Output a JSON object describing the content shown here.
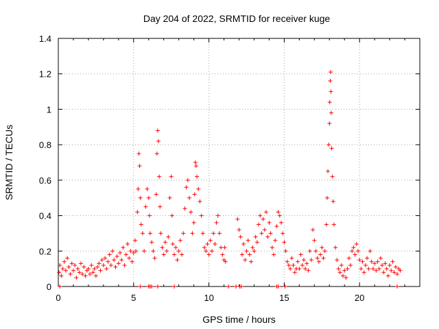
{
  "chart_data": {
    "type": "scatter",
    "title": "Day 204 of 2022, SRMTID for receiver kuge",
    "xlabel": "GPS time / hours",
    "ylabel": "SRMTID / TECUs",
    "xlim": [
      0,
      24
    ],
    "ylim": [
      0,
      1.4
    ],
    "xticks": [
      0,
      5,
      10,
      15,
      20
    ],
    "xtick_labels": [
      "0",
      "5",
      "10",
      "15",
      "20"
    ],
    "yticks": [
      0,
      0.2,
      0.4,
      0.6,
      0.8,
      1.0,
      1.2,
      1.4
    ],
    "ytick_labels": [
      "0",
      "0.2",
      "0.4",
      "0.6",
      "0.8",
      "1",
      "1.2",
      "1.4"
    ],
    "grid": true,
    "marker": "+",
    "series": [
      {
        "name": "SRMTID",
        "color": "#ff0000",
        "points": [
          [
            0.05,
            0.08
          ],
          [
            0.1,
            0.12
          ],
          [
            0.2,
            0.06
          ],
          [
            0.3,
            0.1
          ],
          [
            0.4,
            0.14
          ],
          [
            0.5,
            0.09
          ],
          [
            0.6,
            0.16
          ],
          [
            0.7,
            0.11
          ],
          [
            0.8,
            0.07
          ],
          [
            0.9,
            0.13
          ],
          [
            1.0,
            0.09
          ],
          [
            1.1,
            0.12
          ],
          [
            1.2,
            0.05
          ],
          [
            1.3,
            0.1
          ],
          [
            1.4,
            0.08
          ],
          [
            1.5,
            0.13
          ],
          [
            1.6,
            0.07
          ],
          [
            1.7,
            0.11
          ],
          [
            1.8,
            0.06
          ],
          [
            1.9,
            0.09
          ],
          [
            2.0,
            0.1
          ],
          [
            2.1,
            0.07
          ],
          [
            2.2,
            0.12
          ],
          [
            2.3,
            0.08
          ],
          [
            2.4,
            0.1
          ],
          [
            2.5,
            0.06
          ],
          [
            2.6,
            0.11
          ],
          [
            2.7,
            0.13
          ],
          [
            2.8,
            0.09
          ],
          [
            2.9,
            0.15
          ],
          [
            3.0,
            0.12
          ],
          [
            3.1,
            0.16
          ],
          [
            3.2,
            0.1
          ],
          [
            3.3,
            0.14
          ],
          [
            3.4,
            0.18
          ],
          [
            3.5,
            0.12
          ],
          [
            3.6,
            0.2
          ],
          [
            3.7,
            0.15
          ],
          [
            3.8,
            0.11
          ],
          [
            3.9,
            0.17
          ],
          [
            4.0,
            0.13
          ],
          [
            4.1,
            0.19
          ],
          [
            4.2,
            0.15
          ],
          [
            4.3,
            0.22
          ],
          [
            4.4,
            0.12
          ],
          [
            4.5,
            0.18
          ],
          [
            4.6,
            0.24
          ],
          [
            4.7,
            0.16
          ],
          [
            4.8,
            0.2
          ],
          [
            4.9,
            0.14
          ],
          [
            5.0,
            0.19
          ],
          [
            5.1,
            0.26
          ],
          [
            5.15,
            0.2
          ],
          [
            5.25,
            0.42
          ],
          [
            5.3,
            0.55
          ],
          [
            5.35,
            0.75
          ],
          [
            5.4,
            0.68
          ],
          [
            5.45,
            0.5
          ],
          [
            5.5,
            0.35
          ],
          [
            5.6,
            0.3
          ],
          [
            5.7,
            0.2
          ],
          [
            5.8,
            0.45
          ],
          [
            5.9,
            0.55
          ],
          [
            6.0,
            0.5
          ],
          [
            6.05,
            0.4
          ],
          [
            6.1,
            0.3
          ],
          [
            6.2,
            0.25
          ],
          [
            6.3,
            0.2
          ],
          [
            6.4,
            0.16
          ],
          [
            6.5,
            0.52
          ],
          [
            6.55,
            0.75
          ],
          [
            6.6,
            0.88
          ],
          [
            6.65,
            0.82
          ],
          [
            6.7,
            0.62
          ],
          [
            6.75,
            0.45
          ],
          [
            6.8,
            0.3
          ],
          [
            6.9,
            0.22
          ],
          [
            7.0,
            0.18
          ],
          [
            7.1,
            0.25
          ],
          [
            7.2,
            0.2
          ],
          [
            7.3,
            0.28
          ],
          [
            7.4,
            0.5
          ],
          [
            7.5,
            0.62
          ],
          [
            7.55,
            0.4
          ],
          [
            7.6,
            0.24
          ],
          [
            7.7,
            0.18
          ],
          [
            7.8,
            0.22
          ],
          [
            7.9,
            0.15
          ],
          [
            8.0,
            0.2
          ],
          [
            8.1,
            0.26
          ],
          [
            8.2,
            0.18
          ],
          [
            8.3,
            0.3
          ],
          [
            8.4,
            0.44
          ],
          [
            8.5,
            0.56
          ],
          [
            8.6,
            0.6
          ],
          [
            8.7,
            0.5
          ],
          [
            8.8,
            0.42
          ],
          [
            8.9,
            0.3
          ],
          [
            9.0,
            0.36
          ],
          [
            9.05,
            0.52
          ],
          [
            9.1,
            0.7
          ],
          [
            9.15,
            0.68
          ],
          [
            9.2,
            0.62
          ],
          [
            9.3,
            0.55
          ],
          [
            9.4,
            0.48
          ],
          [
            9.5,
            0.4
          ],
          [
            9.6,
            0.3
          ],
          [
            9.7,
            0.22
          ],
          [
            9.8,
            0.2
          ],
          [
            9.9,
            0.24
          ],
          [
            10.0,
            0.18
          ],
          [
            10.1,
            0.26
          ],
          [
            10.2,
            0.2
          ],
          [
            10.3,
            0.3
          ],
          [
            10.4,
            0.24
          ],
          [
            10.5,
            0.36
          ],
          [
            10.6,
            0.4
          ],
          [
            10.7,
            0.3
          ],
          [
            10.8,
            0.22
          ],
          [
            10.9,
            0.18
          ],
          [
            11.0,
            0.15
          ],
          [
            11.05,
            0.22
          ],
          [
            11.1,
            0.14
          ],
          [
            11.9,
            0.38
          ],
          [
            12.0,
            0.32
          ],
          [
            12.1,
            0.28
          ],
          [
            12.2,
            0.18
          ],
          [
            12.3,
            0.24
          ],
          [
            12.4,
            0.15
          ],
          [
            12.5,
            0.2
          ],
          [
            12.6,
            0.26
          ],
          [
            12.7,
            0.18
          ],
          [
            12.8,
            0.14
          ],
          [
            12.9,
            0.22
          ],
          [
            13.0,
            0.2
          ],
          [
            13.1,
            0.28
          ],
          [
            13.2,
            0.25
          ],
          [
            13.3,
            0.35
          ],
          [
            13.4,
            0.4
          ],
          [
            13.5,
            0.3
          ],
          [
            13.6,
            0.38
          ],
          [
            13.7,
            0.32
          ],
          [
            13.8,
            0.42
          ],
          [
            13.9,
            0.28
          ],
          [
            14.0,
            0.36
          ],
          [
            14.1,
            0.3
          ],
          [
            14.2,
            0.22
          ],
          [
            14.3,
            0.18
          ],
          [
            14.4,
            0.26
          ],
          [
            14.5,
            0.34
          ],
          [
            14.6,
            0.42
          ],
          [
            14.7,
            0.4
          ],
          [
            14.8,
            0.36
          ],
          [
            14.9,
            0.3
          ],
          [
            15.0,
            0.25
          ],
          [
            15.1,
            0.2
          ],
          [
            15.2,
            0.14
          ],
          [
            15.3,
            0.12
          ],
          [
            15.4,
            0.1
          ],
          [
            15.5,
            0.16
          ],
          [
            15.6,
            0.12
          ],
          [
            15.7,
            0.08
          ],
          [
            15.8,
            0.1
          ],
          [
            15.9,
            0.14
          ],
          [
            16.0,
            0.1
          ],
          [
            16.1,
            0.18
          ],
          [
            16.2,
            0.12
          ],
          [
            16.3,
            0.15
          ],
          [
            16.4,
            0.1
          ],
          [
            16.5,
            0.13
          ],
          [
            16.6,
            0.09
          ],
          [
            16.7,
            0.2
          ],
          [
            16.8,
            0.15
          ],
          [
            16.9,
            0.32
          ],
          [
            17.0,
            0.26
          ],
          [
            17.1,
            0.2
          ],
          [
            17.2,
            0.16
          ],
          [
            17.3,
            0.14
          ],
          [
            17.4,
            0.18
          ],
          [
            17.5,
            0.22
          ],
          [
            17.6,
            0.16
          ],
          [
            17.7,
            0.2
          ],
          [
            17.8,
            0.35
          ],
          [
            17.85,
            0.5
          ],
          [
            17.9,
            0.65
          ],
          [
            17.95,
            0.8
          ],
          [
            18.0,
            0.92
          ],
          [
            18.02,
            1.04
          ],
          [
            18.05,
            1.16
          ],
          [
            18.08,
            1.21
          ],
          [
            18.1,
            1.1
          ],
          [
            18.12,
            0.98
          ],
          [
            18.15,
            0.78
          ],
          [
            18.2,
            0.62
          ],
          [
            18.25,
            0.48
          ],
          [
            18.3,
            0.35
          ],
          [
            18.4,
            0.22
          ],
          [
            18.5,
            0.15
          ],
          [
            18.6,
            0.1
          ],
          [
            18.7,
            0.08
          ],
          [
            18.8,
            0.12
          ],
          [
            18.9,
            0.06
          ],
          [
            19.0,
            0.09
          ],
          [
            19.1,
            0.05
          ],
          [
            19.2,
            0.1
          ],
          [
            19.3,
            0.16
          ],
          [
            19.4,
            0.12
          ],
          [
            19.5,
            0.2
          ],
          [
            19.6,
            0.22
          ],
          [
            19.7,
            0.18
          ],
          [
            19.8,
            0.24
          ],
          [
            19.9,
            0.2
          ],
          [
            20.0,
            0.15
          ],
          [
            20.1,
            0.1
          ],
          [
            20.2,
            0.14
          ],
          [
            20.3,
            0.08
          ],
          [
            20.4,
            0.12
          ],
          [
            20.5,
            0.16
          ],
          [
            20.6,
            0.1
          ],
          [
            20.7,
            0.2
          ],
          [
            20.8,
            0.14
          ],
          [
            20.9,
            0.1
          ],
          [
            21.0,
            0.13
          ],
          [
            21.1,
            0.09
          ],
          [
            21.2,
            0.14
          ],
          [
            21.3,
            0.1
          ],
          [
            21.4,
            0.16
          ],
          [
            21.5,
            0.12
          ],
          [
            21.6,
            0.08
          ],
          [
            21.7,
            0.13
          ],
          [
            21.8,
            0.1
          ],
          [
            21.9,
            0.06
          ],
          [
            22.0,
            0.12
          ],
          [
            22.1,
            0.09
          ],
          [
            22.2,
            0.14
          ],
          [
            22.3,
            0.08
          ],
          [
            22.4,
            0.11
          ],
          [
            22.5,
            0.07
          ],
          [
            22.6,
            0.1
          ],
          [
            22.7,
            0.09
          ],
          [
            0.1,
            0.0
          ],
          [
            5.45,
            0.0
          ],
          [
            6.0,
            0.0
          ],
          [
            6.1,
            0.0
          ],
          [
            6.2,
            0.0
          ],
          [
            6.6,
            0.0
          ],
          [
            7.7,
            0.0
          ],
          [
            11.3,
            0.0
          ],
          [
            11.8,
            0.0
          ],
          [
            12.05,
            0.0
          ],
          [
            12.15,
            0.0
          ],
          [
            14.5,
            0.0
          ],
          [
            14.6,
            0.0
          ],
          [
            15.05,
            0.0
          ],
          [
            22.5,
            0.0
          ]
        ]
      }
    ]
  }
}
